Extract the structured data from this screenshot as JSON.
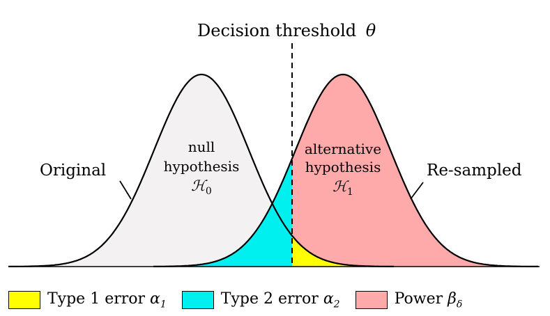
{
  "title": "Decision threshold",
  "title_symbol": "θ",
  "colors": {
    "null_fill": "#f3f1f1",
    "alt_fill": "#ffaaaa",
    "type1": "#ffff00",
    "type2": "#00f0f0",
    "stroke": "#000000"
  },
  "curves": {
    "original_label": "Original",
    "resampled_label": "Re-sampled",
    "null": {
      "line1": "null",
      "line2": "hypothesis",
      "symbol": "ℋ",
      "sub": "0"
    },
    "alt": {
      "line1": "alternative",
      "line2": "hypothesis",
      "symbol": "ℋ",
      "sub": "1"
    }
  },
  "legend": [
    {
      "text": "Type 1 error",
      "symbol": "α",
      "sub": "1",
      "color": "#ffff00"
    },
    {
      "text": "Type 2 error",
      "symbol": "α",
      "sub": "2",
      "color": "#00f0f0"
    },
    {
      "text": "Power",
      "symbol": "β",
      "sub": "δ",
      "color": "#ffaaaa"
    }
  ]
}
